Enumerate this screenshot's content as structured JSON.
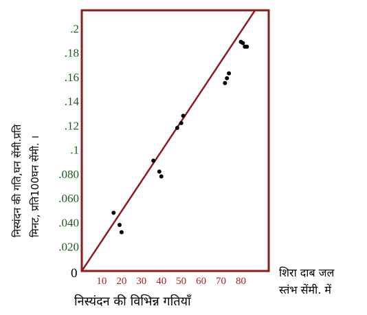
{
  "chart_data": {
    "type": "scatter",
    "title": "",
    "ylabel_lines": [
      "निस्यंदन की गति,घन सेंमी.प्रति",
      "मिनट, प्रति100घन सेंमी. ।"
    ],
    "xlabel": "निस्यंदन की विभिन्न गतियाँ",
    "xlabel_note_lines": [
      "शिरा दाब जल",
      "स्तंभ सेंमी. में"
    ],
    "origin_label": "0",
    "xlim": [
      0,
      94
    ],
    "ylim": [
      0,
      0.215
    ],
    "x_ticks": [
      10,
      20,
      30,
      40,
      50,
      60,
      70,
      80
    ],
    "x_tick_labels": [
      "10",
      "20",
      "30",
      "40",
      "50",
      "60",
      "70",
      "80"
    ],
    "y_ticks": [
      0.02,
      0.04,
      0.06,
      0.08,
      0.1,
      0.12,
      0.14,
      0.16,
      0.18,
      0.2
    ],
    "y_tick_labels": [
      ".020",
      ".040",
      ".060",
      ".080",
      ".1",
      ".12",
      ".14",
      ".16",
      ".18",
      ".2"
    ],
    "grid": false,
    "colors": {
      "frame": "#8b1a1a",
      "line": "#8b1a1a",
      "points": "#000000",
      "y_tick_text": "#1a5c1a",
      "x_tick_text": "#b02020"
    },
    "series": [
      {
        "points": [
          [
            16,
            0.048
          ],
          [
            19,
            0.038
          ],
          [
            20,
            0.032
          ],
          [
            36,
            0.091
          ],
          [
            39,
            0.082
          ],
          [
            40,
            0.078
          ],
          [
            48,
            0.118
          ],
          [
            50,
            0.122
          ],
          [
            51,
            0.128
          ],
          [
            72,
            0.155
          ],
          [
            73,
            0.159
          ],
          [
            74,
            0.163
          ],
          [
            80,
            0.189
          ],
          [
            81,
            0.188
          ],
          [
            82,
            0.185
          ],
          [
            83,
            0.185
          ]
        ]
      }
    ],
    "trend_line": {
      "from": [
        0,
        0
      ],
      "to": [
        94,
        0.232
      ]
    }
  }
}
